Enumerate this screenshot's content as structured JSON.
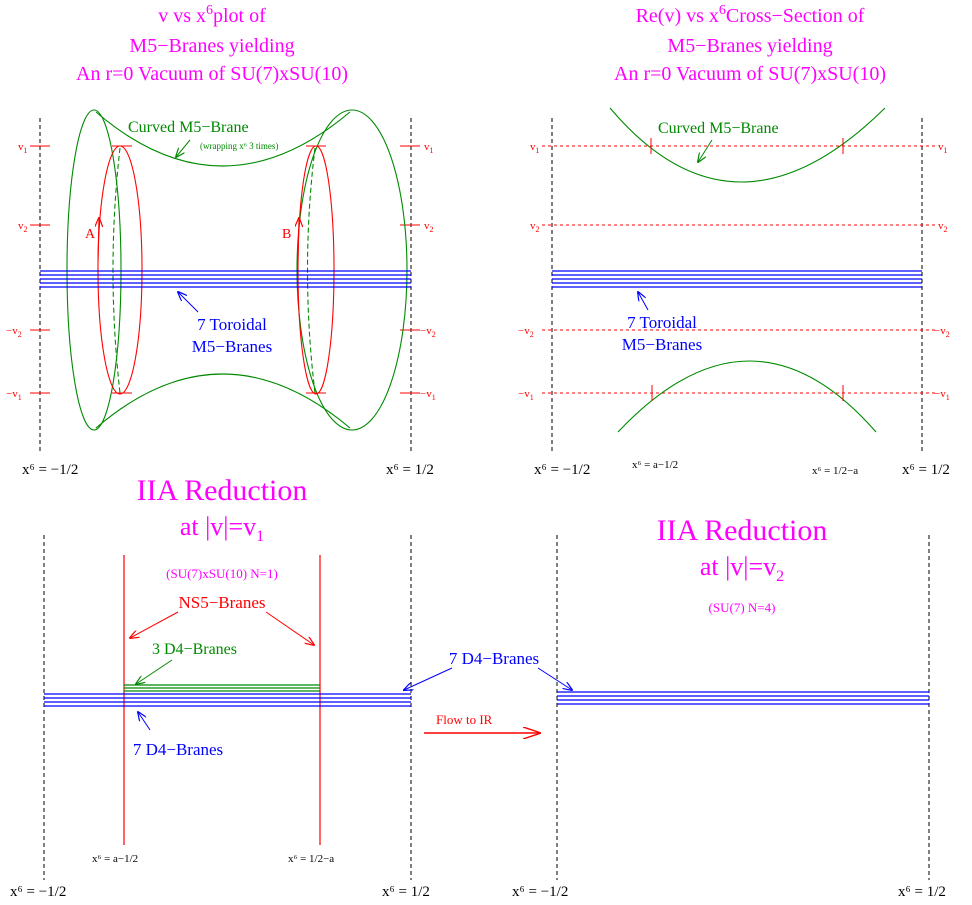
{
  "colors": {
    "magenta": "#ff00ff",
    "green": "#008a00",
    "red": "#ff0000",
    "blue": "#0000ff",
    "black": "#000000"
  },
  "panel_tl": {
    "title_line1_prefix": "v vs x",
    "title_line1_sup": "6",
    "title_line1_suffix": "plot of",
    "title_line2": "M5−Branes yielding",
    "title_line3": "An r=0 Vacuum of SU(7)xSU(10)",
    "curved_label": "Curved M5−Brane",
    "wrapping_note": "(wrapping x⁶  3 times)",
    "label_a": "A",
    "label_b": "B",
    "toroidal_line1": "7 Toroidal",
    "toroidal_line2": "M5−Branes",
    "v1_base": "v",
    "v1_sub": "1",
    "v2_base": "v",
    "v2_sub": "2",
    "mv2_base": "−v",
    "mv2_sub": "2",
    "mv1_base": "−v",
    "mv1_sub": "1",
    "x_left": "x⁶ = −1/2",
    "x_right": "x⁶ = 1/2"
  },
  "panel_tr": {
    "title_line1_prefix": "Re(v) vs x",
    "title_line1_sup": "6",
    "title_line1_suffix": "Cross−Section of",
    "title_line2": "M5−Branes yielding",
    "title_line3": "An r=0 Vacuum of SU(7)xSU(10)",
    "curved_label": "Curved M5−Brane",
    "toroidal_line1": "7 Toroidal",
    "toroidal_line2": "M5−Branes",
    "x_left": "x⁶ = −1/2",
    "x_mid1": "x⁶ = a−1/2",
    "x_mid2": "x⁶ = 1/2−a",
    "x_right": "x⁶ = 1/2"
  },
  "panel_bl": {
    "title_line1": "IIA Reduction",
    "title_line2_prefix": "at |v|=v",
    "title_line2_sub": "1",
    "group_label": "(SU(7)xSU(10)   N=1)",
    "ns5_label": "NS5−Branes",
    "d4_green_label": "3 D4−Branes",
    "d4_blue_label": "7 D4−Branes",
    "x_left": "x⁶ = −1/2",
    "x_mid1": "x⁶ = a−1/2",
    "x_mid2": "x⁶ = 1/2−a",
    "x_right": "x⁶ = 1/2"
  },
  "panel_br": {
    "title_line1": "IIA Reduction",
    "title_line2_prefix": "at |v|=v",
    "title_line2_sub": "2",
    "group_label": "(SU(7)   N=4)",
    "x_left": "x⁶ = −1/2",
    "x_right": "x⁶ = 1/2"
  },
  "middle": {
    "d4_label": "7 D4−Branes",
    "flow_label": "Flow to IR"
  }
}
